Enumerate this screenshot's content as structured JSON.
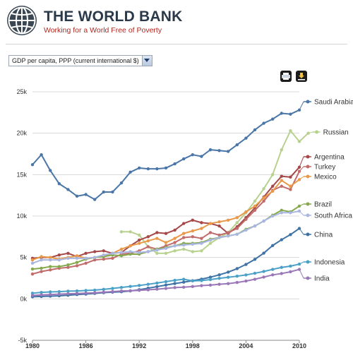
{
  "header": {
    "title": "THE WORLD BANK",
    "subtitle": "Working for a World Free of Poverty"
  },
  "indicator": {
    "selected": "GDP per capita, PPP (current international $)"
  },
  "toolbar": {
    "print_icon": "printer-icon",
    "download_icon": "download-icon"
  },
  "chart_data": {
    "type": "line",
    "title": "",
    "xlabel": "",
    "ylabel": "",
    "xlim": [
      1980,
      2010
    ],
    "ylim": [
      -5000,
      25000
    ],
    "x_ticks": [
      1980,
      1986,
      1992,
      1998,
      2004,
      2010
    ],
    "y_ticks": [
      -5000,
      0,
      5000,
      10000,
      15000,
      20000,
      25000
    ],
    "x_tick_labels": [
      "1980",
      "1986",
      "1992",
      "1998",
      "2004",
      "2010"
    ],
    "y_tick_labels": [
      "-5k",
      "0k",
      "5k",
      "10k",
      "15k",
      "20k",
      "25k"
    ],
    "grid": "horizontal",
    "legend": "right",
    "series": [
      {
        "name": "Saudi Arabia",
        "color": "#4a76a8",
        "start": 1980,
        "values": [
          16200,
          17400,
          15500,
          13900,
          13200,
          12400,
          12600,
          12000,
          12900,
          12900,
          14000,
          15300,
          15800,
          15700,
          15700,
          15800,
          16300,
          16900,
          17400,
          17200,
          18000,
          17900,
          17800,
          18600,
          19400,
          20400,
          21200,
          21700,
          22400,
          22300,
          22800
        ]
      },
      {
        "name": "Russian",
        "color": "#b7d28f",
        "start": 1990,
        "values": [
          8100,
          8100,
          7700,
          6300,
          5500,
          5500,
          5800,
          6000,
          5700,
          5800,
          6700,
          7400,
          8000,
          9200,
          10400,
          11800,
          13300,
          15000,
          18000,
          20300,
          19000,
          20000
        ]
      },
      {
        "name": "Argentina",
        "color": "#a64848",
        "start": 1980,
        "values": [
          4900,
          5000,
          5000,
          5300,
          5500,
          5100,
          5500,
          5700,
          5800,
          5500,
          5600,
          6400,
          7100,
          7500,
          8000,
          7900,
          8300,
          9100,
          9500,
          9200,
          9100,
          8800,
          7900,
          8700,
          9800,
          11000,
          12300,
          13600,
          14800,
          14700,
          15900
        ]
      },
      {
        "name": "Turkey",
        "color": "#c26b6b",
        "start": 1980,
        "values": [
          3000,
          3300,
          3500,
          3700,
          3800,
          4000,
          4300,
          4700,
          4800,
          4900,
          5400,
          5500,
          5800,
          6300,
          6000,
          6400,
          6800,
          7400,
          7500,
          7300,
          8000,
          7700,
          8000,
          8500,
          9600,
          10700,
          11800,
          13100,
          13600,
          13200,
          15400
        ]
      },
      {
        "name": "Mexico",
        "color": "#e89a4a",
        "start": 1980,
        "values": [
          4700,
          5100,
          5000,
          4800,
          5000,
          5200,
          4900,
          5000,
          5200,
          5500,
          6000,
          6400,
          6700,
          7000,
          7300,
          6800,
          7300,
          7900,
          8200,
          8500,
          9100,
          9300,
          9500,
          9800,
          10500,
          11200,
          12200,
          13000,
          14300,
          13600,
          14400
        ]
      },
      {
        "name": "Brazil",
        "color": "#86a94e",
        "start": 1980,
        "values": [
          3600,
          3700,
          3900,
          3900,
          4100,
          4400,
          4800,
          5000,
          5100,
          5300,
          5200,
          5400,
          5400,
          5700,
          6000,
          6200,
          6400,
          6700,
          6700,
          6800,
          7200,
          7400,
          7600,
          7800,
          8400,
          8800,
          9400,
          10100,
          10700,
          10500,
          11200
        ]
      },
      {
        "name": "South Africa",
        "color": "#a9b6e0",
        "start": 1980,
        "values": [
          4300,
          4700,
          4700,
          4700,
          4900,
          4900,
          4900,
          5000,
          5300,
          5500,
          5600,
          5700,
          5600,
          5700,
          5900,
          6100,
          6400,
          6500,
          6600,
          6700,
          7100,
          7400,
          7600,
          7800,
          8300,
          8800,
          9400,
          10000,
          10400,
          10400,
          10600
        ]
      },
      {
        "name": "China",
        "color": "#3f72a5",
        "start": 1980,
        "values": [
          250,
          290,
          330,
          370,
          440,
          520,
          580,
          660,
          750,
          810,
          860,
          960,
          1110,
          1290,
          1480,
          1670,
          1850,
          2020,
          2190,
          2380,
          2620,
          2900,
          3230,
          3650,
          4160,
          4770,
          5520,
          6440,
          7140,
          7760,
          8500
        ]
      },
      {
        "name": "Indonesia",
        "color": "#4aa0c6",
        "start": 1980,
        "values": [
          680,
          780,
          840,
          870,
          930,
          960,
          1010,
          1060,
          1150,
          1260,
          1380,
          1500,
          1620,
          1760,
          1910,
          2080,
          2240,
          2370,
          2170,
          2210,
          2330,
          2480,
          2610,
          2740,
          2890,
          3090,
          3310,
          3560,
          3800,
          3950,
          4200
        ]
      },
      {
        "name": "India",
        "color": "#9a78b8",
        "start": 1980,
        "values": [
          420,
          480,
          520,
          570,
          610,
          650,
          690,
          730,
          810,
          880,
          950,
          980,
          1030,
          1090,
          1170,
          1260,
          1360,
          1410,
          1490,
          1600,
          1660,
          1760,
          1840,
          1980,
          2150,
          2370,
          2630,
          2900,
          3060,
          3270,
          3560
        ]
      }
    ]
  }
}
